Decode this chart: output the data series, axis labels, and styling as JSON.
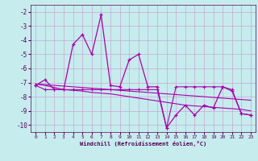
{
  "xlabel": "Windchill (Refroidissement éolien,°C)",
  "background_color": "#c6ecee",
  "grid_color": "#c8a8d0",
  "line_color": "#aa00aa",
  "x_values": [
    0,
    1,
    2,
    3,
    4,
    5,
    6,
    7,
    8,
    9,
    10,
    11,
    12,
    13,
    14,
    15,
    16,
    17,
    18,
    19,
    20,
    21,
    22,
    23
  ],
  "y_main": [
    -7.2,
    -6.8,
    -7.5,
    -7.5,
    -4.3,
    -3.6,
    -5.0,
    -2.2,
    -7.2,
    -7.3,
    -5.4,
    -5.0,
    -7.3,
    -7.3,
    -10.2,
    -9.3,
    -8.6,
    -9.3,
    -8.6,
    -8.8,
    -7.3,
    -7.6,
    -9.2,
    -9.3
  ],
  "y_line2": [
    -7.2,
    -7.5,
    -7.5,
    -7.5,
    -7.5,
    -7.5,
    -7.5,
    -7.5,
    -7.5,
    -7.5,
    -7.5,
    -7.5,
    -7.5,
    -7.5,
    -10.2,
    -7.3,
    -7.3,
    -7.3,
    -7.3,
    -7.3,
    -7.3,
    -7.5,
    -9.2,
    -9.3
  ],
  "y_trend1": [
    -7.1,
    -7.15,
    -7.2,
    -7.25,
    -7.3,
    -7.35,
    -7.4,
    -7.45,
    -7.5,
    -7.55,
    -7.6,
    -7.65,
    -7.7,
    -7.75,
    -7.8,
    -7.85,
    -7.9,
    -7.95,
    -8.0,
    -8.05,
    -8.1,
    -8.15,
    -8.2,
    -8.25
  ],
  "y_trend2": [
    -7.1,
    -7.2,
    -7.35,
    -7.5,
    -7.55,
    -7.6,
    -7.7,
    -7.75,
    -7.8,
    -7.9,
    -8.0,
    -8.1,
    -8.2,
    -8.3,
    -8.4,
    -8.5,
    -8.6,
    -8.65,
    -8.7,
    -8.75,
    -8.8,
    -8.85,
    -8.9,
    -9.0
  ],
  "ylim": [
    -10.5,
    -1.5
  ],
  "yticks": [
    -10,
    -9,
    -8,
    -7,
    -6,
    -5,
    -4,
    -3,
    -2
  ],
  "xlim": [
    -0.5,
    23.5
  ],
  "xticks": [
    0,
    1,
    2,
    3,
    4,
    5,
    6,
    7,
    8,
    9,
    10,
    11,
    12,
    13,
    14,
    15,
    16,
    17,
    18,
    19,
    20,
    21,
    22,
    23
  ],
  "xtick_labels": [
    "0",
    "1",
    "2",
    "3",
    "4",
    "5",
    "6",
    "7",
    "8",
    "9",
    "10",
    "11",
    "12",
    "13",
    "14",
    "15",
    "16",
    "17",
    "18",
    "19",
    "20",
    "21",
    "22",
    "23"
  ]
}
